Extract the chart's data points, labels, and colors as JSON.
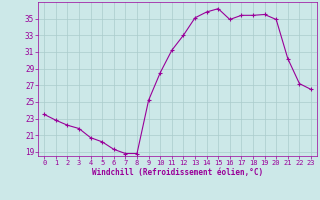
{
  "x": [
    0,
    1,
    2,
    3,
    4,
    5,
    6,
    7,
    8,
    9,
    10,
    11,
    12,
    13,
    14,
    15,
    16,
    17,
    18,
    19,
    20,
    21,
    22,
    23
  ],
  "y": [
    23.5,
    22.8,
    22.2,
    21.8,
    20.7,
    20.2,
    19.3,
    18.8,
    18.8,
    25.2,
    28.5,
    31.2,
    33.0,
    35.1,
    35.8,
    36.2,
    34.9,
    35.4,
    35.4,
    35.5,
    34.9,
    30.2,
    27.2,
    26.5
  ],
  "line_color": "#990099",
  "marker": "+",
  "bg_color": "#cce8e8",
  "grid_color": "#aacccc",
  "xlabel": "Windchill (Refroidissement éolien,°C)",
  "xlabel_color": "#990099",
  "tick_color": "#990099",
  "ylim": [
    18.5,
    37.0
  ],
  "xlim": [
    -0.5,
    23.5
  ],
  "yticks": [
    19,
    21,
    23,
    25,
    27,
    29,
    31,
    33,
    35
  ],
  "xticks": [
    0,
    1,
    2,
    3,
    4,
    5,
    6,
    7,
    8,
    9,
    10,
    11,
    12,
    13,
    14,
    15,
    16,
    17,
    18,
    19,
    20,
    21,
    22,
    23
  ]
}
